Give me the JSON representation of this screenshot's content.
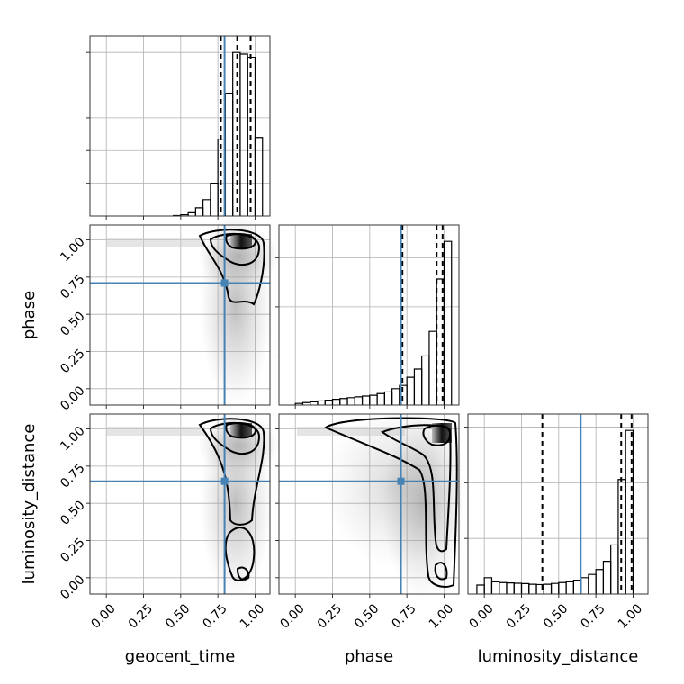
{
  "chart_data": {
    "type": "corner",
    "grid": true,
    "truth_color": "#4682b4",
    "hist_color": "#000000",
    "quantile_color": "#000000",
    "hist_ylim": [
      0,
      1.1
    ],
    "parameters": [
      {
        "name": "geocent_time",
        "xlim": [
          -0.11,
          1.1
        ],
        "xticks": [
          {
            "value": 0,
            "label": "0.00"
          },
          {
            "value": 0.25,
            "label": "0.25"
          },
          {
            "value": 0.5,
            "label": "0.50"
          },
          {
            "value": 0.75,
            "label": "0.75"
          },
          {
            "value": 1,
            "label": "1.00"
          }
        ],
        "hist_yticks": [
          0.2,
          0.4,
          0.6,
          0.8,
          1.0
        ],
        "bins": [
          0.45,
          0.5,
          0.55,
          0.6,
          0.65,
          0.7,
          0.75,
          0.8,
          0.85,
          0.9,
          0.95,
          1.0,
          1.05
        ],
        "counts": [
          0.003,
          0.008,
          0.02,
          0.05,
          0.1,
          0.2,
          0.47,
          0.75,
          1.0,
          0.99,
          0.97,
          0.48
        ],
        "quantiles": [
          0.77,
          0.88,
          0.97
        ],
        "truth": 0.795
      },
      {
        "name": "phase",
        "xlim": [
          -0.11,
          1.1
        ],
        "xticks": [
          {
            "value": 0,
            "label": "0.00"
          },
          {
            "value": 0.25,
            "label": "0.25"
          },
          {
            "value": 0.5,
            "label": "0.50"
          },
          {
            "value": 0.75,
            "label": "0.75"
          },
          {
            "value": 1,
            "label": "1.00"
          }
        ],
        "hist_yticks": [
          0.3,
          0.6,
          0.9
        ],
        "bins": [
          0,
          0.05,
          0.1,
          0.15,
          0.2,
          0.25,
          0.3,
          0.35,
          0.4,
          0.45,
          0.5,
          0.55,
          0.6,
          0.65,
          0.7,
          0.75,
          0.8,
          0.85,
          0.9,
          0.95,
          1.0,
          1.05
        ],
        "counts": [
          0.01,
          0.015,
          0.02,
          0.025,
          0.03,
          0.035,
          0.04,
          0.045,
          0.05,
          0.055,
          0.06,
          0.07,
          0.08,
          0.1,
          0.12,
          0.17,
          0.22,
          0.3,
          0.45,
          0.77,
          1.0
        ],
        "quantiles": [
          0.72,
          0.95,
          0.99
        ],
        "truth": 0.71
      },
      {
        "name": "luminosity_distance",
        "xlim": [
          -0.11,
          1.1
        ],
        "xticks": [
          {
            "value": 0,
            "label": "0.00"
          },
          {
            "value": 0.25,
            "label": "0.25"
          },
          {
            "value": 0.5,
            "label": "0.50"
          },
          {
            "value": 0.75,
            "label": "0.75"
          },
          {
            "value": 1,
            "label": "1.00"
          }
        ],
        "hist_yticks": [
          0.34,
          0.68,
          1.02
        ],
        "bins": [
          -0.05,
          0,
          0.05,
          0.1,
          0.15,
          0.2,
          0.25,
          0.3,
          0.35,
          0.4,
          0.45,
          0.5,
          0.55,
          0.6,
          0.65,
          0.7,
          0.75,
          0.8,
          0.85,
          0.9,
          0.95,
          1.0
        ],
        "counts": [
          0.055,
          0.1,
          0.075,
          0.07,
          0.068,
          0.066,
          0.064,
          0.06,
          0.058,
          0.06,
          0.065,
          0.07,
          0.075,
          0.085,
          0.1,
          0.12,
          0.15,
          0.2,
          0.3,
          0.7,
          1.0
        ],
        "quantiles": [
          0.39,
          0.92,
          0.99
        ],
        "truth": 0.648
      }
    ]
  }
}
